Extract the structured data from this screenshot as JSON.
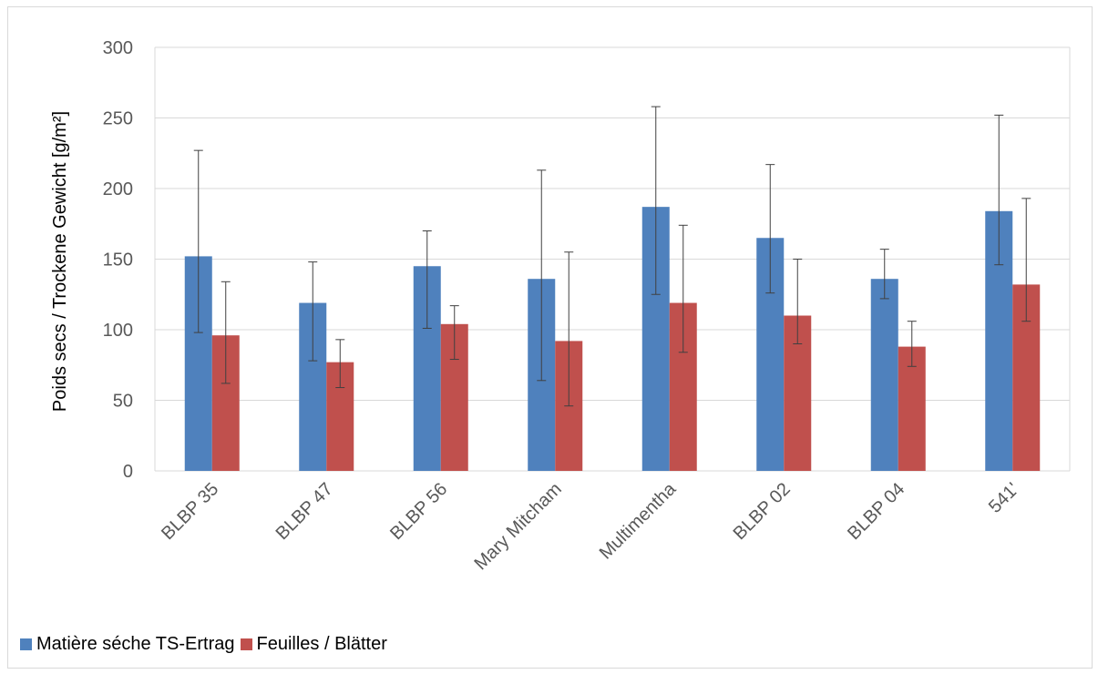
{
  "chart_data": {
    "type": "bar",
    "title": "",
    "xlabel": "",
    "ylabel": "Poids secs / Trockene Gewicht [g/m²]",
    "ylim": [
      0,
      300
    ],
    "yticks": [
      0,
      50,
      100,
      150,
      200,
      250,
      300
    ],
    "grid": true,
    "legend_position": "bottom-left",
    "categories": [
      "BLBP 35",
      "BLBP 47",
      "BLBP 56",
      "Mary Mitcham",
      "Multimentha",
      "BLBP 02",
      "BLBP 04",
      "541'"
    ],
    "series": [
      {
        "name": "Matière séche  TS-Ertrag",
        "color": "#4f81bd",
        "values": [
          152,
          119,
          145,
          136,
          187,
          165,
          136,
          184
        ],
        "error_low": [
          98,
          78,
          101,
          64,
          125,
          126,
          122,
          146
        ],
        "error_high": [
          227,
          148,
          170,
          213,
          258,
          217,
          157,
          252
        ]
      },
      {
        "name": "Feuilles / Blätter",
        "color": "#c0504d",
        "values": [
          96,
          77,
          104,
          92,
          119,
          110,
          88,
          132
        ],
        "error_low": [
          62,
          59,
          79,
          46,
          84,
          90,
          74,
          106
        ],
        "error_high": [
          134,
          93,
          117,
          155,
          174,
          150,
          106,
          193
        ]
      }
    ]
  }
}
